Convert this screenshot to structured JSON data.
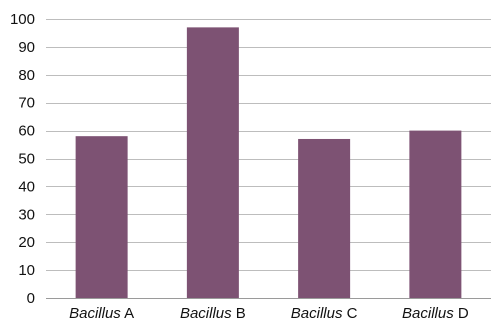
{
  "chart_data": {
    "type": "bar",
    "title": "",
    "xlabel": "",
    "ylabel": "",
    "categories": [
      {
        "genus": "Bacillus",
        "suffix": " A"
      },
      {
        "genus": "Bacillus",
        "suffix": " B"
      },
      {
        "genus": "Bacillus",
        "suffix": " C"
      },
      {
        "genus": "Bacillus",
        "suffix": " D"
      }
    ],
    "values": [
      58,
      97,
      57,
      60
    ],
    "ylim": [
      0,
      100
    ],
    "yticks": [
      "0",
      "10",
      "20",
      "30",
      "40",
      "50",
      "60",
      "70",
      "80",
      "90",
      "100"
    ],
    "grid": true,
    "bar_color": "#7d5273",
    "grid_color": "#bdbdbd"
  }
}
